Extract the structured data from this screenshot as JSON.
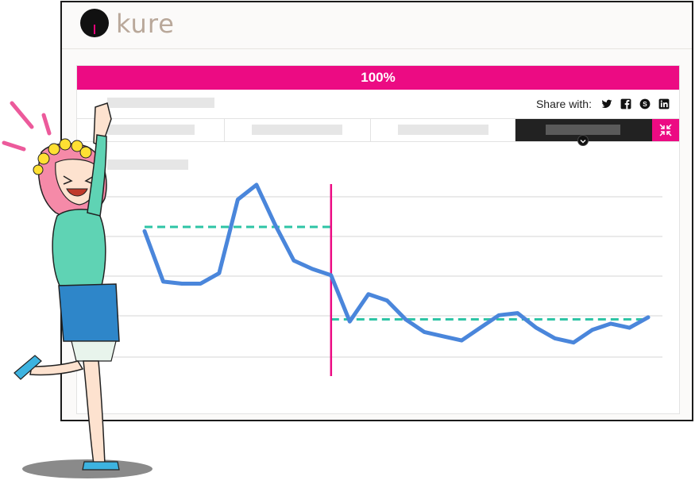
{
  "brand": {
    "name": "kure"
  },
  "progress": {
    "label": "100%",
    "value": 1.0,
    "color": "#ec0b83"
  },
  "share": {
    "label": "Share with:",
    "icons": [
      "twitter-icon",
      "facebook-icon",
      "skype-icon",
      "linkedin-icon"
    ]
  },
  "tabs": [
    {
      "id": "tab-1",
      "active": false
    },
    {
      "id": "tab-2",
      "active": false
    },
    {
      "id": "tab-3",
      "active": false
    },
    {
      "id": "tab-4",
      "active": true
    }
  ],
  "colors": {
    "accent": "#ec0b83",
    "line": "#4a86db",
    "baseline": "#2ec4a5",
    "grid": "#e3e3e3"
  },
  "chart_data": {
    "type": "line",
    "title": "",
    "xlabel": "",
    "ylabel": "",
    "x": [
      1,
      2,
      3,
      4,
      5,
      6,
      7,
      8,
      9,
      10,
      11,
      12,
      13,
      14,
      15,
      16,
      17,
      18,
      19,
      20,
      21,
      22,
      23,
      24,
      25,
      26,
      27,
      28
    ],
    "ylim": [
      0,
      100
    ],
    "series": [
      {
        "values": [
          75,
          51,
          50,
          50,
          55,
          90,
          97,
          78,
          61,
          57,
          54,
          32,
          45,
          42,
          33,
          27,
          25,
          23,
          29,
          35,
          36,
          29,
          24,
          22,
          28,
          31,
          29,
          34
        ]
      }
    ],
    "reference_lines": [
      {
        "from_x": 1,
        "to_x": 11,
        "y": 77
      },
      {
        "from_x": 11,
        "to_x": 28,
        "y": 33
      }
    ],
    "vertical_marker_x": 11,
    "grid": true
  }
}
